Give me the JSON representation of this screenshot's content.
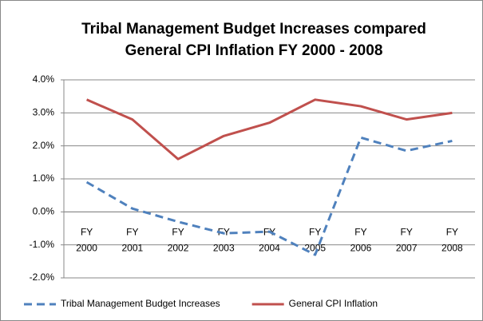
{
  "chart_data": {
    "type": "line",
    "title": [
      "Tribal Management Budget Increases compared",
      "General CPI Inflation FY 2000 - 2008"
    ],
    "categories": [
      "FY 2000",
      "FY 2001",
      "FY 2002",
      "FY 2003",
      "FY 2004",
      "FY 2005",
      "FY 2006",
      "FY 2007",
      "FY 2008"
    ],
    "series": [
      {
        "name": "Tribal Management Budget Increases",
        "color": "#4f81bd",
        "dash": true,
        "values": [
          0.9,
          0.1,
          -0.3,
          -0.65,
          -0.6,
          -1.3,
          2.25,
          1.85,
          2.15
        ]
      },
      {
        "name": "General CPI Inflation",
        "color": "#c0504d",
        "dash": false,
        "values": [
          3.4,
          2.8,
          1.6,
          2.3,
          2.7,
          3.4,
          3.2,
          2.8,
          3.0
        ]
      }
    ],
    "ylim": [
      -2,
      4
    ],
    "yticks": [
      {
        "value": -2,
        "label": "-2.0%"
      },
      {
        "value": -1,
        "label": "-1.0%"
      },
      {
        "value": 0,
        "label": "0.0%"
      },
      {
        "value": 1,
        "label": "1.0%"
      },
      {
        "value": 2,
        "label": "2.0%"
      },
      {
        "value": 3,
        "label": "3.0%"
      },
      {
        "value": 4,
        "label": "4.0%"
      }
    ],
    "grid": true,
    "legend": "bottom"
  }
}
